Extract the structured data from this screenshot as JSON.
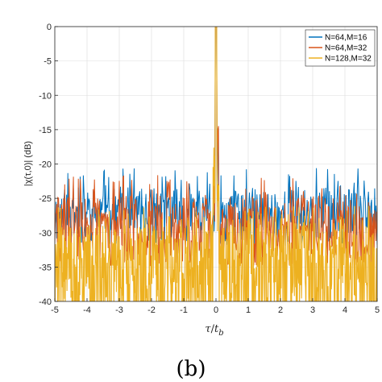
{
  "chart_data": {
    "type": "line",
    "xlabel_var": "τ",
    "xlabel_slash": "/",
    "xlabel_t": "t",
    "xlabel_sub": "b",
    "ylabel": "|χ(τ,0)| (dB)",
    "xlim": [
      -5,
      5
    ],
    "ylim": [
      -40,
      0
    ],
    "x_ticks": [
      "-5",
      "-4",
      "-3",
      "-2",
      "-1",
      "0",
      "1",
      "2",
      "3",
      "4",
      "5"
    ],
    "y_ticks": [
      "0",
      "-5",
      "-10",
      "-15",
      "-20",
      "-25",
      "-30",
      "-35",
      "-40"
    ],
    "grid": true,
    "legend_position": "top-right",
    "caption": "(b)",
    "series": [
      {
        "name": "N=64,M=16",
        "color": "#0072BD",
        "peak": 0,
        "typical_floor": -32,
        "typical_max": -23.5
      },
      {
        "name": "N=64,M=32",
        "color": "#D95319",
        "peak": 0,
        "typical_floor": -35,
        "typical_max": -24.5
      },
      {
        "name": "N=128,M=32",
        "color": "#EDB120",
        "peak": 0,
        "typical_floor": -40,
        "typical_max": -29
      }
    ]
  }
}
